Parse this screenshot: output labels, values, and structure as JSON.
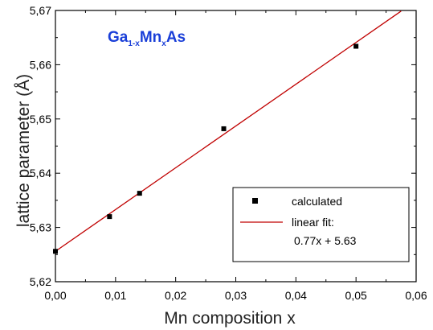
{
  "chart_data": {
    "type": "scatter",
    "inset_title": {
      "main": [
        "Ga",
        "Mn",
        "As"
      ],
      "sub": [
        "1-x",
        "x"
      ]
    },
    "xlabel": "Mn composition x",
    "ylabel": "lattice parameter (Å)",
    "xlim": [
      0.0,
      0.06
    ],
    "ylim": [
      5.62,
      5.67
    ],
    "xticks": [
      0.0,
      0.01,
      0.02,
      0.03,
      0.04,
      0.05,
      0.06
    ],
    "xtick_labels": [
      "0,00",
      "0,01",
      "0,02",
      "0,03",
      "0,04",
      "0,05",
      "0,06"
    ],
    "yticks": [
      5.62,
      5.63,
      5.64,
      5.65,
      5.66,
      5.67
    ],
    "ytick_labels": [
      "5,62",
      "5,63",
      "5,64",
      "5,65",
      "5,66",
      "5,67"
    ],
    "grid": false,
    "legend_position": "bottom-right",
    "series": [
      {
        "name": "calculated",
        "kind": "scatter",
        "marker": "square",
        "color": "#000000",
        "x": [
          0.0,
          0.009,
          0.014,
          0.028,
          0.05
        ],
        "y": [
          5.6256,
          5.632,
          5.6363,
          5.6482,
          5.6634
        ]
      },
      {
        "name": "linear fit:",
        "kind": "line",
        "color": "#c00000",
        "slope": 0.77,
        "intercept": 5.6256,
        "label_line2": "0.77x + 5.63",
        "x_range": [
          0.0,
          0.0575
        ]
      }
    ],
    "colors": {
      "inset_title": "#1a3fd8",
      "axis": "#000000"
    }
  }
}
